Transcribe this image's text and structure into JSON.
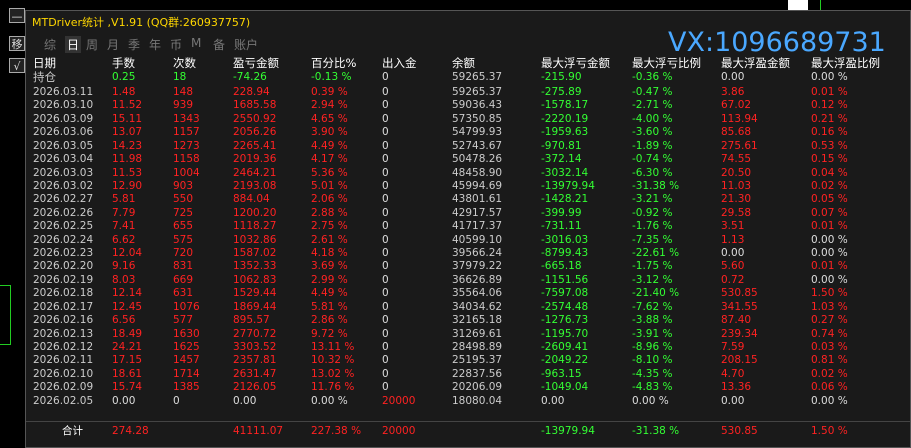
{
  "header": {
    "title": "MTDriver统计 ,V1.91 (QQ群:260937757)",
    "watermark": "VX:1096689731"
  },
  "side_buttons": [
    "—",
    "移",
    "√"
  ],
  "tabs": [
    "综",
    "日",
    "周",
    "月",
    "季",
    "年",
    "币",
    "M",
    "备",
    "账户"
  ],
  "table": {
    "columns": [
      "日期",
      "手数",
      "次数",
      "盈亏金额",
      "百分比%",
      "出入金",
      "余额",
      "最大浮亏金额",
      "最大浮亏比例",
      "最大浮盈金额",
      "最大浮盈比例"
    ],
    "rows": [
      [
        "持仓",
        "0.25",
        "18",
        "-74.26",
        "-0.13 %",
        "0",
        "59265.37",
        "-215.90",
        "-0.36 %",
        "0.00",
        "0.00 %"
      ],
      [
        "2026.03.11",
        "1.48",
        "148",
        "228.94",
        "0.39 %",
        "0",
        "59265.37",
        "-275.89",
        "-0.47 %",
        "3.86",
        "0.01 %"
      ],
      [
        "2026.03.10",
        "11.52",
        "939",
        "1685.58",
        "2.94 %",
        "0",
        "59036.43",
        "-1578.17",
        "-2.71 %",
        "67.02",
        "0.12 %"
      ],
      [
        "2026.03.09",
        "15.11",
        "1343",
        "2550.92",
        "4.65 %",
        "0",
        "57350.85",
        "-2220.19",
        "-4.00 %",
        "113.94",
        "0.21 %"
      ],
      [
        "2026.03.06",
        "13.07",
        "1157",
        "2056.26",
        "3.90 %",
        "0",
        "54799.93",
        "-1959.63",
        "-3.60 %",
        "85.68",
        "0.16 %"
      ],
      [
        "2026.03.05",
        "14.23",
        "1273",
        "2265.41",
        "4.49 %",
        "0",
        "52743.67",
        "-970.81",
        "-1.89 %",
        "275.61",
        "0.53 %"
      ],
      [
        "2026.03.04",
        "11.98",
        "1158",
        "2019.36",
        "4.17 %",
        "0",
        "50478.26",
        "-372.14",
        "-0.74 %",
        "74.55",
        "0.15 %"
      ],
      [
        "2026.03.03",
        "11.53",
        "1004",
        "2464.21",
        "5.36 %",
        "0",
        "48458.90",
        "-3032.14",
        "-6.30 %",
        "20.50",
        "0.04 %"
      ],
      [
        "2026.03.02",
        "12.90",
        "903",
        "2193.08",
        "5.01 %",
        "0",
        "45994.69",
        "-13979.94",
        "-31.38 %",
        "11.03",
        "0.02 %"
      ],
      [
        "2026.02.27",
        "5.81",
        "550",
        "884.04",
        "2.06 %",
        "0",
        "43801.61",
        "-1428.21",
        "-3.21 %",
        "21.30",
        "0.05 %"
      ],
      [
        "2026.02.26",
        "7.79",
        "725",
        "1200.20",
        "2.88 %",
        "0",
        "42917.57",
        "-399.99",
        "-0.92 %",
        "29.58",
        "0.07 %"
      ],
      [
        "2026.02.25",
        "7.41",
        "655",
        "1118.27",
        "2.75 %",
        "0",
        "41717.37",
        "-731.11",
        "-1.76 %",
        "3.51",
        "0.01 %"
      ],
      [
        "2026.02.24",
        "6.62",
        "575",
        "1032.86",
        "2.61 %",
        "0",
        "40599.10",
        "-3016.03",
        "-7.35 %",
        "1.13",
        "0.00 %"
      ],
      [
        "2026.02.23",
        "12.04",
        "720",
        "1587.02",
        "4.18 %",
        "0",
        "39566.24",
        "-8799.43",
        "-22.61 %",
        "0.00",
        "0.00 %"
      ],
      [
        "2026.02.20",
        "9.16",
        "831",
        "1352.33",
        "3.69 %",
        "0",
        "37979.22",
        "-665.18",
        "-1.75 %",
        "5.60",
        "0.01 %"
      ],
      [
        "2026.02.19",
        "8.03",
        "669",
        "1062.83",
        "2.99 %",
        "0",
        "36626.89",
        "-1151.56",
        "-3.12 %",
        "0.72",
        "0.00 %"
      ],
      [
        "2026.02.18",
        "12.14",
        "631",
        "1529.44",
        "4.49 %",
        "0",
        "35564.06",
        "-7597.08",
        "-21.40 %",
        "530.85",
        "1.50 %"
      ],
      [
        "2026.02.17",
        "12.45",
        "1076",
        "1869.44",
        "5.81 %",
        "0",
        "34034.62",
        "-2574.48",
        "-7.62 %",
        "341.55",
        "1.03 %"
      ],
      [
        "2026.02.16",
        "6.56",
        "577",
        "895.57",
        "2.86 %",
        "0",
        "32165.18",
        "-1276.73",
        "-3.88 %",
        "87.40",
        "0.27 %"
      ],
      [
        "2026.02.13",
        "18.49",
        "1630",
        "2770.72",
        "9.72 %",
        "0",
        "31269.61",
        "-1195.70",
        "-3.91 %",
        "239.34",
        "0.74 %"
      ],
      [
        "2026.02.12",
        "24.21",
        "1625",
        "3303.52",
        "13.11 %",
        "0",
        "28498.89",
        "-2609.41",
        "-8.96 %",
        "7.59",
        "0.03 %"
      ],
      [
        "2026.02.11",
        "17.15",
        "1457",
        "2357.81",
        "10.32 %",
        "0",
        "25195.37",
        "-2049.22",
        "-8.10 %",
        "208.15",
        "0.81 %"
      ],
      [
        "2026.02.10",
        "18.61",
        "1714",
        "2631.47",
        "13.02 %",
        "0",
        "22837.56",
        "-963.15",
        "-4.35 %",
        "4.70",
        "0.02 %"
      ],
      [
        "2026.02.09",
        "15.74",
        "1385",
        "2126.05",
        "11.76 %",
        "0",
        "20206.09",
        "-1049.04",
        "-4.83 %",
        "13.36",
        "0.06 %"
      ],
      [
        "2026.02.05",
        "0.00",
        "0",
        "0.00",
        "0.00 %",
        "20000",
        "18080.04",
        "0.00",
        "0.00 %",
        "0.00",
        "0.00 %"
      ]
    ],
    "total": [
      "合计",
      "274.28",
      null,
      "41111.07",
      "227.38 %",
      "20000",
      null,
      "-13979.94",
      "-31.38 %",
      "530.85",
      "1.50 %"
    ]
  }
}
